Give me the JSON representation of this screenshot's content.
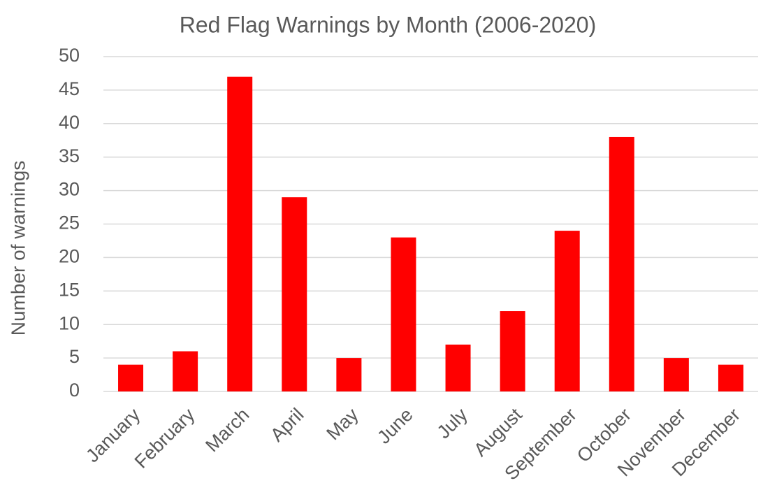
{
  "chart_data": {
    "type": "bar",
    "title": "Red Flag Warnings by Month (2006-2020)",
    "ylabel": "Number of warnings",
    "categories": [
      "January",
      "February",
      "March",
      "April",
      "May",
      "June",
      "July",
      "August",
      "September",
      "October",
      "November",
      "December"
    ],
    "values": [
      4,
      6,
      47,
      29,
      5,
      23,
      7,
      12,
      24,
      38,
      5,
      4
    ],
    "color": "#ff0000",
    "ylim": [
      0,
      50
    ],
    "yticks": [
      0,
      5,
      10,
      15,
      20,
      25,
      30,
      35,
      40,
      45,
      50
    ],
    "grid": true
  }
}
